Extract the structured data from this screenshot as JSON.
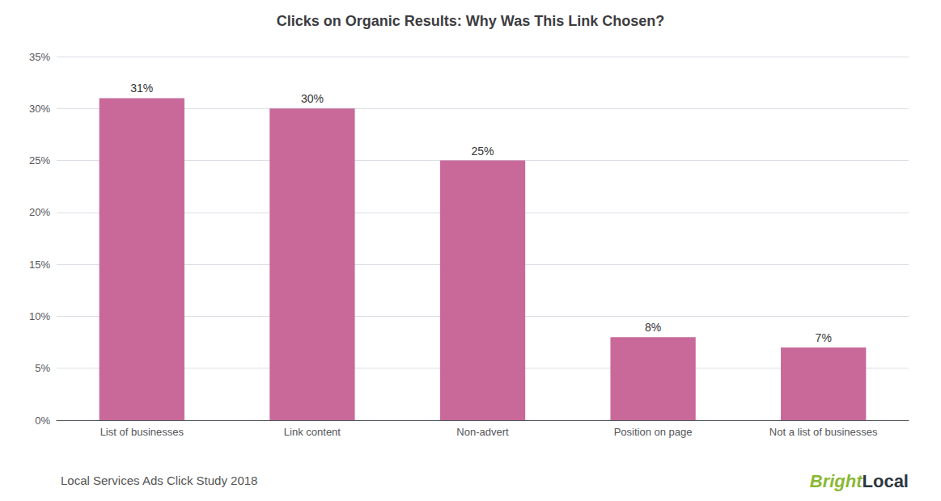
{
  "chart_data": {
    "type": "bar",
    "title": "Clicks on Organic Results: Why Was This Link Chosen?",
    "categories": [
      "List of businesses",
      "Link content",
      "Non-advert",
      "Position on page",
      "Not a list of businesses"
    ],
    "values": [
      31,
      30,
      25,
      8,
      7
    ],
    "value_labels": [
      "31%",
      "30%",
      "25%",
      "8%",
      "7%"
    ],
    "data_labels": true,
    "color": "#c8699a",
    "ylim": [
      0,
      35
    ],
    "yticks": [
      {
        "value": 0,
        "label": "0%"
      },
      {
        "value": 5,
        "label": "5%"
      },
      {
        "value": 10,
        "label": "10%"
      },
      {
        "value": 15,
        "label": "15%"
      },
      {
        "value": 20,
        "label": "20%"
      },
      {
        "value": 25,
        "label": "25%"
      },
      {
        "value": 30,
        "label": "30%"
      },
      {
        "value": 35,
        "label": "35%"
      }
    ],
    "grid": true,
    "annotations": [
      {
        "text": "Local Services Ads Click Study 2018"
      },
      {
        "text": "Bright",
        "color": "#8ab833"
      },
      {
        "text": "Local",
        "color": "#2d3740"
      }
    ]
  }
}
